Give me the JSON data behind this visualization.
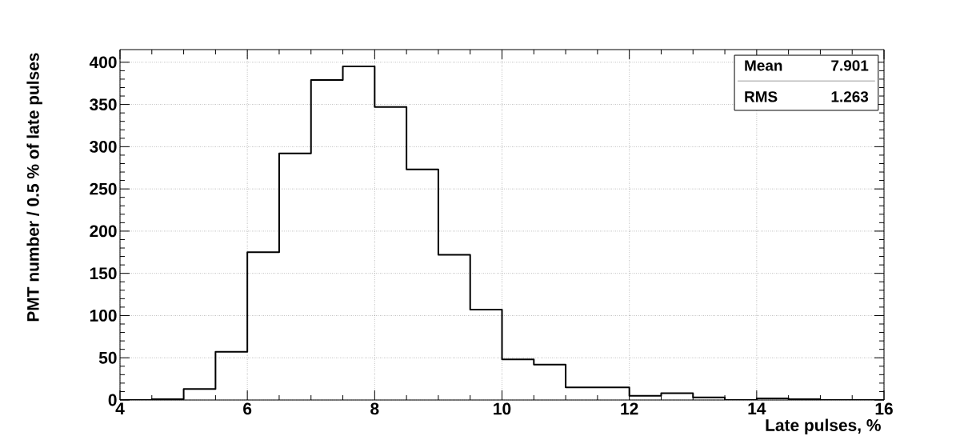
{
  "chart_data": {
    "type": "histogram",
    "xlabel": "Late pulses, %",
    "ylabel": "PMT number /   0.5 % of late pulses",
    "bins": [
      4,
      4.5,
      5,
      5.5,
      6,
      6.5,
      7,
      7.5,
      8,
      8.5,
      9,
      9.5,
      10,
      10.5,
      11,
      11.5,
      12,
      12.5,
      13,
      13.5,
      14,
      14.5,
      15,
      15.5,
      16
    ],
    "values": [
      0,
      1,
      13,
      57,
      175,
      292,
      379,
      395,
      347,
      273,
      172,
      107,
      48,
      42,
      15,
      15,
      5,
      8,
      3,
      0,
      2,
      1,
      0,
      0
    ],
    "color": "#000000",
    "xlim": [
      4,
      16
    ],
    "ylim": [
      0,
      415
    ],
    "xticks": [
      4,
      6,
      8,
      10,
      12,
      14,
      16
    ],
    "yticks": [
      0,
      50,
      100,
      150,
      200,
      250,
      300,
      350,
      400
    ],
    "grid": true,
    "annotations": [
      "Mean",
      "7.901",
      "RMS",
      "1.263"
    ]
  }
}
